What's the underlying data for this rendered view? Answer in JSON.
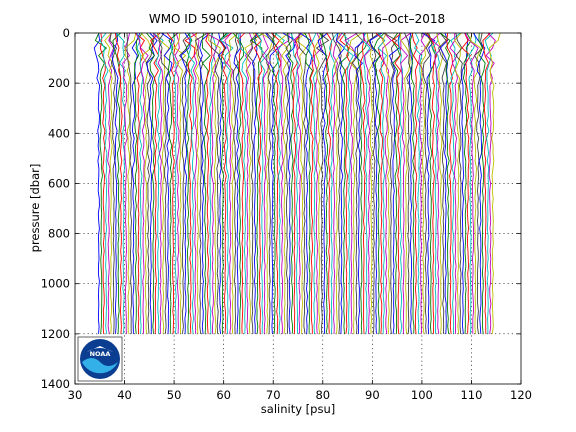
{
  "chart_data": {
    "type": "line",
    "title": "WMO ID 5901010, internal ID 1411, 16–Oct–2018",
    "xlabel": "salinity [psu]",
    "ylabel": "pressure [dbar]",
    "xlim": [
      30,
      120
    ],
    "ylim": [
      0,
      1400
    ],
    "y_reversed": true,
    "x_ticks": [
      30,
      40,
      50,
      60,
      70,
      80,
      90,
      100,
      110,
      120
    ],
    "y_ticks": [
      0,
      200,
      400,
      600,
      800,
      1000,
      1200,
      1400
    ],
    "x_tick_labels": [
      "30",
      "40",
      "50",
      "60",
      "70",
      "80",
      "90",
      "100",
      "110",
      "120"
    ],
    "y_tick_labels": [
      "0",
      "200",
      "400",
      "600",
      "800",
      "1000",
      "1200",
      "1400"
    ],
    "grid": true,
    "profiles": {
      "count": 160,
      "first_offset_psu": 34.8,
      "offset_step_psu": 0.5,
      "pressure_max_dbar": 1200,
      "profile_colors": [
        "#0000ff",
        "#008000",
        "#ff0000",
        "#00bfbf",
        "#bf00bf",
        "#bfbf00",
        "#404040"
      ]
    },
    "logo": {
      "text": "NOAA",
      "colors": [
        "#0b3d91",
        "#33b0e8",
        "#ffffff"
      ]
    }
  }
}
